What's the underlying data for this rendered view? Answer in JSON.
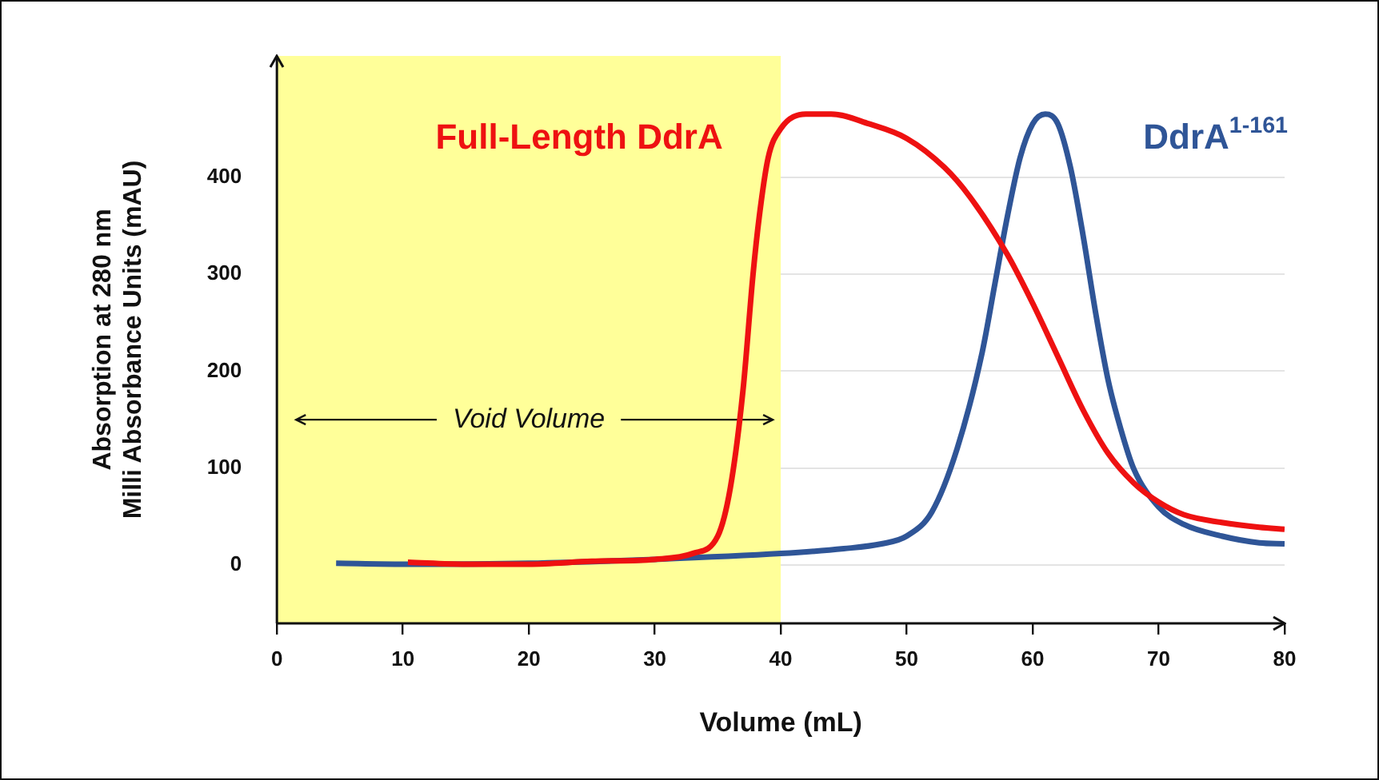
{
  "chart_data": {
    "type": "line",
    "xlabel": "Volume (mL)",
    "ylabel": "Absorption at 280 nm\nMilli Absorbance Units (mAU)",
    "xlim": [
      0,
      80
    ],
    "xticks": [
      0,
      10,
      20,
      30,
      40,
      50,
      60,
      70,
      80
    ],
    "ylim": [
      -60,
      525
    ],
    "yticks": [
      0,
      100,
      200,
      300,
      400
    ],
    "grid": "y",
    "legend": false,
    "marker": "none",
    "line_style": "solid",
    "bands": [
      {
        "axis": "x",
        "from": 0,
        "to": 40,
        "label": "Void Volume",
        "color": "#ffff99"
      }
    ],
    "series": [
      {
        "name": "Full-Length DdrA",
        "color": "#ee1111",
        "x": [
          10.4,
          15,
          20,
          25,
          30,
          33,
          35,
          36,
          37,
          37.8,
          38.3,
          39,
          40,
          42,
          44,
          47,
          50,
          53,
          55,
          58,
          60,
          62,
          64,
          66,
          68,
          70,
          72,
          75,
          78,
          80
        ],
        "values": [
          3,
          1,
          1,
          4,
          6,
          12,
          30,
          80,
          180,
          300,
          360,
          420,
          450,
          465,
          465,
          455,
          440,
          410,
          380,
          320,
          270,
          215,
          160,
          115,
          85,
          65,
          52,
          44,
          39,
          37
        ]
      },
      {
        "name": "DdrA$^{1-161}$",
        "color": "#2f5597",
        "x": [
          4.7,
          10,
          20,
          30,
          40,
          45,
          48,
          50,
          52,
          54,
          56,
          57,
          58,
          59,
          60,
          61,
          62,
          63,
          64,
          65,
          66,
          67,
          68,
          70,
          72,
          75,
          78,
          80
        ],
        "values": [
          2,
          1,
          2,
          6,
          12,
          17,
          22,
          30,
          55,
          120,
          220,
          290,
          360,
          420,
          455,
          465,
          455,
          410,
          340,
          260,
          190,
          140,
          100,
          60,
          42,
          30,
          23,
          22
        ]
      }
    ]
  }
}
